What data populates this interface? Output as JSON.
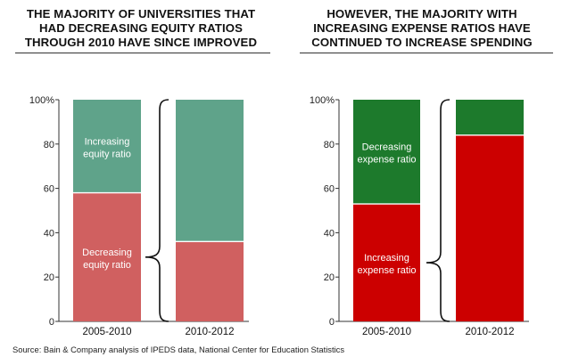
{
  "chart_data": [
    {
      "type": "bar",
      "stacked": true,
      "title": [
        "THE MAJORITY OF UNIVERSITIES THAT",
        "HAD DECREASING EQUITY RATIOS",
        "THROUGH 2010 HAVE SINCE IMPROVED"
      ],
      "categories": [
        "2005-2010",
        "2010-2012"
      ],
      "series": [
        {
          "name": "Decreasing equity ratio",
          "label_lines": [
            "Decreasing",
            "equity ratio"
          ],
          "color": "#d06060",
          "values": [
            58,
            36
          ],
          "label_on": 0
        },
        {
          "name": "Increasing equity ratio",
          "label_lines": [
            "Increasing",
            "equity ratio"
          ],
          "color": "#5fa38a",
          "values": [
            42,
            64
          ],
          "label_on": 0
        }
      ],
      "ylim": [
        0,
        100
      ],
      "yticks": [
        0,
        20,
        40,
        60,
        80,
        100
      ],
      "ytick_labels": [
        "0",
        "20",
        "40",
        "60",
        "80",
        "100%"
      ],
      "xlabel": "",
      "ylabel": "",
      "annotation": "bracket linking the decreasing segment of 2005-2010 to the full 2010-2012 bar"
    },
    {
      "type": "bar",
      "stacked": true,
      "title": [
        "HOWEVER, THE MAJORITY WITH",
        "INCREASING EXPENSE RATIOS HAVE",
        "CONTINUED TO INCREASE SPENDING"
      ],
      "categories": [
        "2005-2010",
        "2010-2012"
      ],
      "series": [
        {
          "name": "Increasing expense ratio",
          "label_lines": [
            "Increasing",
            "expense ratio"
          ],
          "color": "#cc0000",
          "values": [
            53,
            84
          ],
          "label_on": 0
        },
        {
          "name": "Decreasing expense ratio",
          "label_lines": [
            "Decreasing",
            "expense ratio"
          ],
          "color": "#1d7a2c",
          "values": [
            47,
            16
          ],
          "label_on": 0
        }
      ],
      "ylim": [
        0,
        100
      ],
      "yticks": [
        0,
        20,
        40,
        60,
        80,
        100
      ],
      "ytick_labels": [
        "0",
        "20",
        "40",
        "60",
        "80",
        "100%"
      ],
      "xlabel": "",
      "ylabel": "",
      "annotation": "bracket linking the increasing segment of 2005-2010 to the full 2010-2012 bar"
    }
  ],
  "source": "Source: Bain & Company analysis of IPEDS data, National Center for Education Statistics"
}
